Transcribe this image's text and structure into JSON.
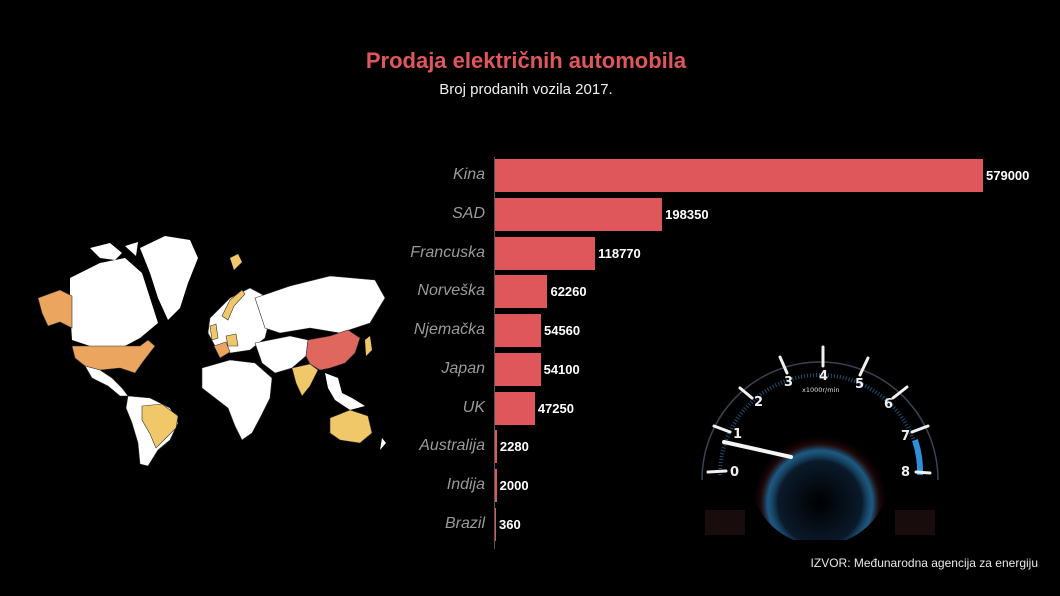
{
  "header": {
    "title": "Prodaja električnih automobila",
    "subtitle": "Broj prodanih vozila 2017."
  },
  "source": "IZVOR: Međunarodna agencija za energiju",
  "colors": {
    "background": "#000000",
    "bar": "#e0575b",
    "title": "#e0575b",
    "map_high": "#e0675e",
    "map_mid": "#eba55f",
    "map_low": "#f0c86a",
    "map_base": "#ffffff"
  },
  "gauge": {
    "unit_label": "x1000r/min",
    "ticks": [
      "0",
      "1",
      "2",
      "3",
      "4",
      "5",
      "6",
      "7",
      "8"
    ]
  },
  "chart_data": {
    "type": "bar",
    "orientation": "horizontal",
    "title": "Prodaja električnih automobila",
    "subtitle": "Broj prodanih vozila 2017.",
    "xlabel": "",
    "ylabel": "",
    "categories": [
      "Kina",
      "SAD",
      "Francuska",
      "Norveška",
      "Njemačka",
      "Japan",
      "UK",
      "Australija",
      "Indija",
      "Brazil"
    ],
    "values": [
      579000,
      198350,
      118770,
      62260,
      54560,
      54100,
      47250,
      2280,
      2000,
      360
    ],
    "xlim": [
      0,
      579000
    ],
    "grid": false,
    "legend": "none",
    "data_labels": true,
    "source": "IZVOR: Međunarodna agencija za energiju"
  }
}
